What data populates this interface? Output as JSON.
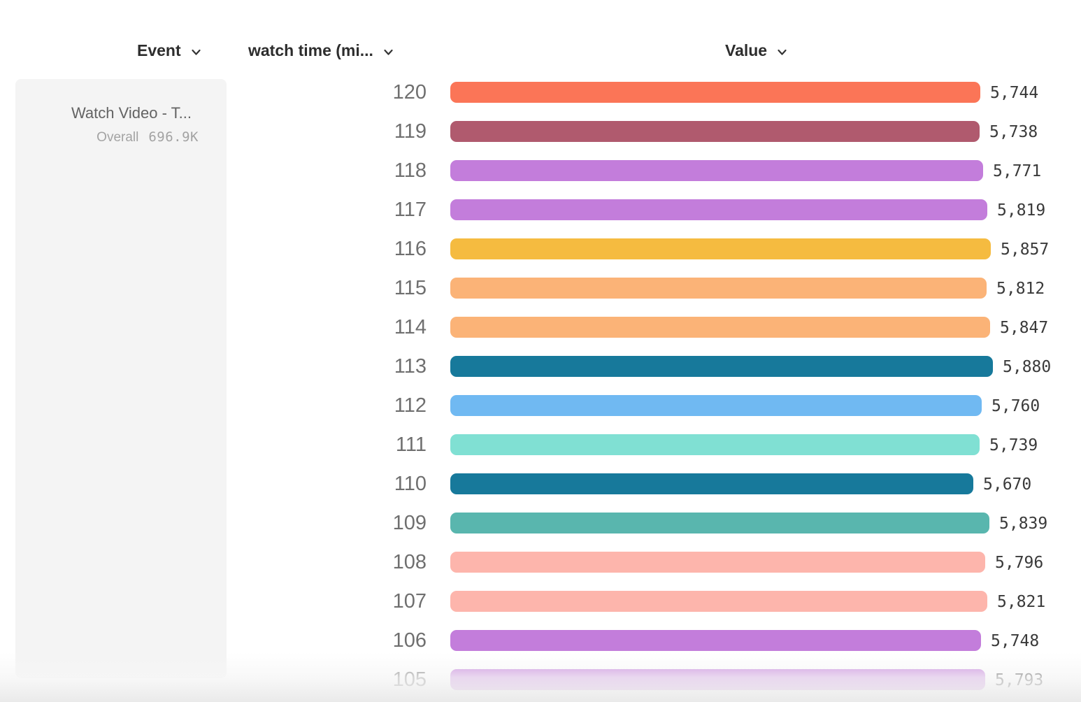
{
  "columns": {
    "event": {
      "label": "Event"
    },
    "series": {
      "label": "watch time (mi..."
    },
    "value": {
      "label": "Value"
    }
  },
  "event_card": {
    "title": "Watch Video - T...",
    "overall_label": "Overall",
    "overall_value": "696.9K"
  },
  "chart_data": {
    "type": "bar",
    "orientation": "horizontal",
    "series_name": "watch time (mi...)",
    "categories": [
      "120",
      "119",
      "118",
      "117",
      "116",
      "115",
      "114",
      "113",
      "112",
      "111",
      "110",
      "109",
      "108",
      "107",
      "106",
      "105"
    ],
    "values": [
      5744,
      5738,
      5771,
      5819,
      5857,
      5812,
      5847,
      5880,
      5760,
      5739,
      5670,
      5839,
      5796,
      5821,
      5748,
      5793
    ],
    "value_labels": [
      "5,744",
      "5,738",
      "5,771",
      "5,819",
      "5,857",
      "5,812",
      "5,847",
      "5,880",
      "5,760",
      "5,739",
      "5,670",
      "5,839",
      "5,796",
      "5,821",
      "5,748",
      "5,793"
    ],
    "bar_colors": [
      "#FB7557",
      "#B05A6E",
      "#C37DDB",
      "#C37DDB",
      "#F5BB40",
      "#FBB377",
      "#FBB377",
      "#17799B",
      "#70B9F2",
      "#80E0D3",
      "#17799B",
      "#59B6AE",
      "#FDB5AC",
      "#FDB5AC",
      "#C37DDB",
      "#C37DDB"
    ],
    "xlim": [
      0,
      5880
    ],
    "grid": false,
    "legend": false,
    "label_color": "#6f6f6f",
    "value_color": "#3a3a3a"
  }
}
